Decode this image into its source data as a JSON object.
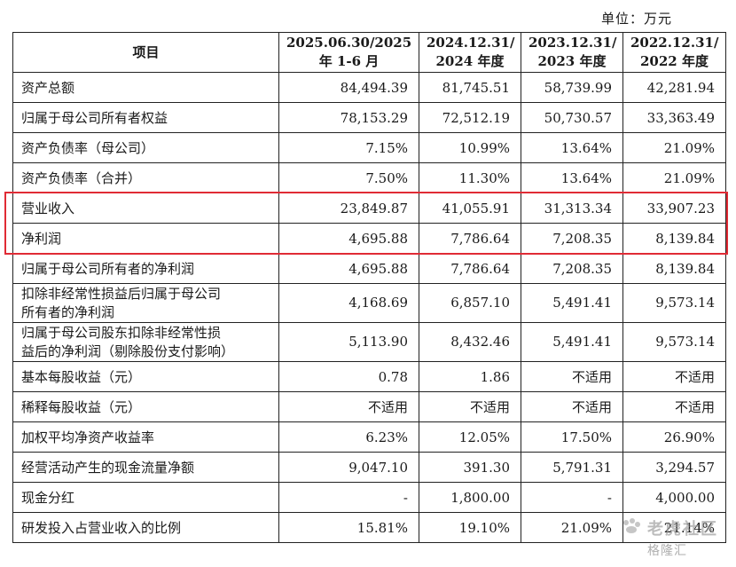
{
  "unit_label": "单位：万元",
  "header": {
    "item": "项目",
    "cols": [
      {
        "line1": "2025.06.30/2025",
        "line2": "年 1-6 月"
      },
      {
        "line1": "2024.12.31/",
        "line2": "2024 年度"
      },
      {
        "line1": "2023.12.31/",
        "line2": "2023 年度"
      },
      {
        "line1": "2022.12.31/",
        "line2": "2022 年度"
      }
    ]
  },
  "rows": [
    {
      "label": [
        "资产总额"
      ],
      "values": [
        "84,494.39",
        "81,745.51",
        "58,739.99",
        "42,281.94"
      ]
    },
    {
      "label": [
        "归属于母公司所有者权益"
      ],
      "values": [
        "78,153.29",
        "72,512.19",
        "50,730.57",
        "33,363.49"
      ]
    },
    {
      "label": [
        "资产负债率（母公司）"
      ],
      "values": [
        "7.15%",
        "10.99%",
        "13.64%",
        "21.09%"
      ]
    },
    {
      "label": [
        "资产负债率（合并）"
      ],
      "values": [
        "7.50%",
        "11.30%",
        "13.64%",
        "21.09%"
      ]
    },
    {
      "label": [
        "营业收入"
      ],
      "values": [
        "23,849.87",
        "41,055.91",
        "31,313.34",
        "33,907.23"
      ]
    },
    {
      "label": [
        "净利润"
      ],
      "values": [
        "4,695.88",
        "7,786.64",
        "7,208.35",
        "8,139.84"
      ]
    },
    {
      "label": [
        "归属于母公司所有者的净利润"
      ],
      "values": [
        "4,695.88",
        "7,786.64",
        "7,208.35",
        "8,139.84"
      ]
    },
    {
      "label": [
        "扣除非经常性损益后归属于母公司",
        "所有者的净利润"
      ],
      "values": [
        "4,168.69",
        "6,857.10",
        "5,491.41",
        "9,573.14"
      ]
    },
    {
      "label": [
        "归属于母公司股东扣除非经常性损",
        "益后的净利润（剔除股份支付影响）"
      ],
      "values": [
        "5,113.90",
        "8,432.46",
        "5,491.41",
        "9,573.14"
      ]
    },
    {
      "label": [
        "基本每股收益（元）"
      ],
      "values": [
        "0.78",
        "1.86",
        "不适用",
        "不适用"
      ]
    },
    {
      "label": [
        "稀释每股收益（元）"
      ],
      "values": [
        "不适用",
        "不适用",
        "不适用",
        "不适用"
      ]
    },
    {
      "label": [
        "加权平均净资产收益率"
      ],
      "values": [
        "6.23%",
        "12.05%",
        "17.50%",
        "26.90%"
      ]
    },
    {
      "label": [
        "经营活动产生的现金流量净额"
      ],
      "values": [
        "9,047.10",
        "391.30",
        "5,791.31",
        "3,294.57"
      ]
    },
    {
      "label": [
        "现金分红"
      ],
      "values": [
        "-",
        "1,800.00",
        "-",
        "4,000.00"
      ]
    },
    {
      "label": [
        "研发投入占营业收入的比例"
      ],
      "values": [
        "15.81%",
        "19.10%",
        "21.09%",
        "21.14%"
      ]
    }
  ],
  "watermark": {
    "line1": "老虎社区",
    "line2": "格隆汇"
  },
  "colors": {
    "highlight": "#e02b35"
  }
}
